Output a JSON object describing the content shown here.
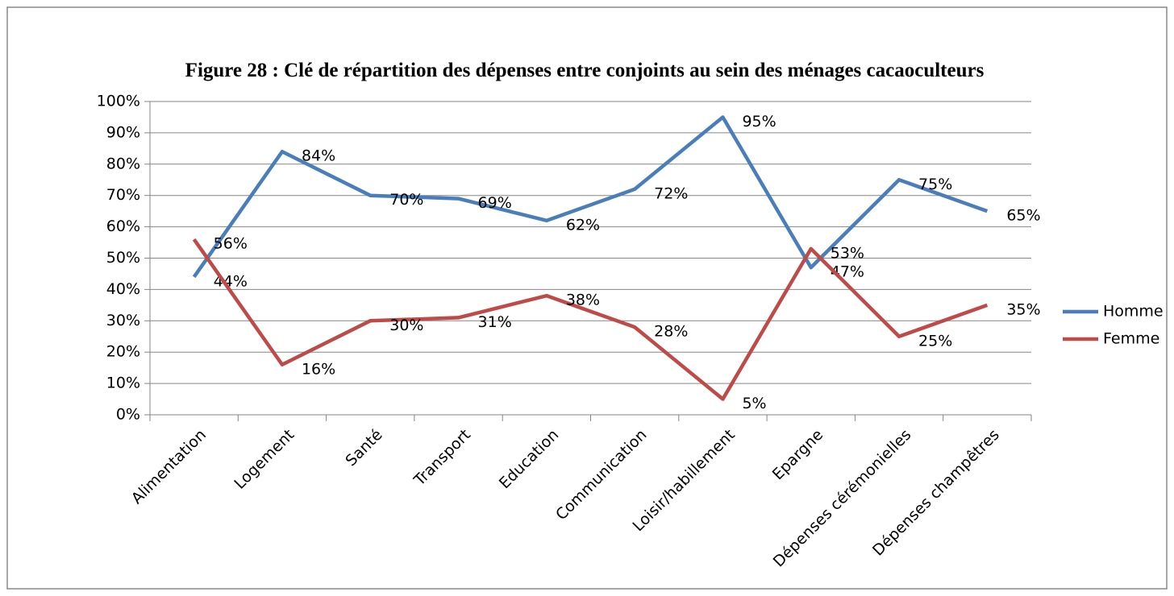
{
  "chart_data": {
    "type": "line",
    "title": "Figure 28 : Clé de répartition  des dépenses entre conjoints  au sein des ménages cacaoculteurs",
    "categories": [
      "Alimentation",
      "Logement",
      "Santé",
      "Transport",
      "Education",
      "Communication",
      "Loisir/habillement",
      "Epargne",
      "Dépenses cérémonielles",
      "Dépenses champêtres"
    ],
    "series": [
      {
        "name": "Homme",
        "color": "#4a7ebb",
        "values": [
          44,
          84,
          70,
          69,
          62,
          72,
          95,
          47,
          75,
          65
        ],
        "value_labels": [
          "44%",
          "84%",
          "70%",
          "69%",
          "62%",
          "72%",
          "95%",
          "47%",
          "75%",
          "65%"
        ]
      },
      {
        "name": "Femme",
        "color": "#be4b48",
        "values": [
          56,
          16,
          30,
          31,
          38,
          28,
          5,
          53,
          25,
          35
        ],
        "value_labels": [
          "56%",
          "16%",
          "30%",
          "31%",
          "38%",
          "28%",
          "5%",
          "53%",
          "25%",
          "35%"
        ]
      }
    ],
    "ylim": [
      0,
      100
    ],
    "yticks": [
      {
        "value": 0,
        "label": "0%"
      },
      {
        "value": 10,
        "label": "10%"
      },
      {
        "value": 20,
        "label": "20%"
      },
      {
        "value": 30,
        "label": "30%"
      },
      {
        "value": 40,
        "label": "40%"
      },
      {
        "value": 50,
        "label": "50%"
      },
      {
        "value": 60,
        "label": "60%"
      },
      {
        "value": 70,
        "label": "70%"
      },
      {
        "value": 80,
        "label": "80%"
      },
      {
        "value": 90,
        "label": "90%"
      },
      {
        "value": 100,
        "label": "100%"
      }
    ],
    "grid": true,
    "legend": "right"
  }
}
